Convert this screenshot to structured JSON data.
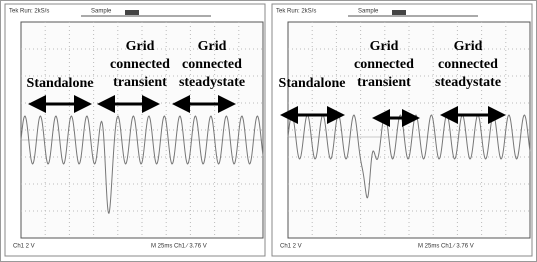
{
  "panels": [
    {
      "header": {
        "run": "Tek Run: 2kS/s",
        "mode": "Sample"
      },
      "labels": {
        "standalone": "Standalone",
        "transient": [
          "Grid",
          "connected",
          "transient"
        ],
        "steadystate": [
          "Grid",
          "connected",
          "steadystate"
        ]
      },
      "footer": {
        "channel": "Ch1    2 V",
        "timebase": "M 25ms  Ch1 ∕  3.76 V"
      }
    },
    {
      "header": {
        "run": "Tek Run: 2kS/s",
        "mode": "Sample"
      },
      "labels": {
        "standalone": "Standalone",
        "transient": [
          "Grid",
          "connected",
          "transient"
        ],
        "steadystate": [
          "Grid",
          "connected",
          "steadystate"
        ]
      },
      "footer": {
        "channel": "Ch1    2 V",
        "timebase": "M 25ms  Ch1 ∕  3.76 V"
      }
    }
  ]
}
